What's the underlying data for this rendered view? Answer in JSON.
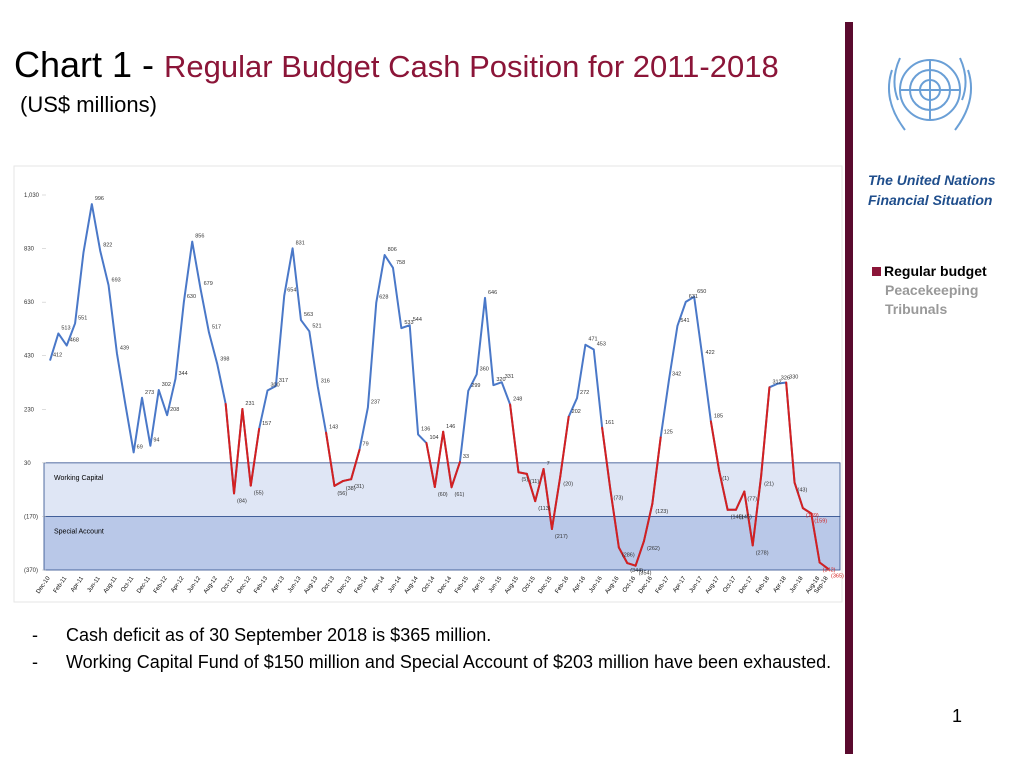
{
  "slide": {
    "title_prefix": "Chart 1 - ",
    "title": "Regular Budget Cash Position for 2011-2018",
    "subtitle": "(US$ millions)",
    "side_title": "The United Nations Financial Situation",
    "nav": [
      "Regular budget",
      "Peacekeeping",
      "Tribunals"
    ],
    "bullets": [
      "Cash deficit as of 30 September 2018 is $365 million.",
      "Working Capital Fund of $150 million and Special Account of $203 million have been exhausted."
    ],
    "page_number": "1"
  },
  "chart_data": {
    "type": "line",
    "color": "#4a78c8",
    "negative_color": "#d42020",
    "ylim": [
      -370,
      1030
    ],
    "yticks": [
      {
        "value": 1030,
        "label": "1,030"
      },
      830,
      630,
      430,
      230,
      30,
      {
        "value": -170,
        "label": "(170)"
      },
      {
        "value": -370,
        "label": "(370)"
      }
    ],
    "bands": [
      {
        "name": "Working Capital",
        "range": [
          30,
          -170
        ],
        "color": "#dfe6f5"
      },
      {
        "name": "Special Account",
        "range": [
          -170,
          -370
        ],
        "color": "#b9c8e8"
      }
    ],
    "categories": [
      "Dec-10",
      null,
      "Feb-11",
      null,
      "Apr-11",
      null,
      "Jun-11",
      null,
      "Aug-11",
      null,
      "Oct-11",
      null,
      "Dec-11",
      null,
      "Feb-12",
      null,
      "Apr-12",
      null,
      "Jun-12",
      null,
      "Aug-12",
      null,
      "Oct-12",
      null,
      "Dec-12",
      null,
      "Feb-13",
      null,
      "Apr-13",
      null,
      "Jun-13",
      null,
      "Aug-13",
      null,
      "Oct-13",
      null,
      "Dec-13",
      null,
      "Feb-14",
      null,
      "Apr-14",
      null,
      "Jun-14",
      null,
      "Aug-14",
      null,
      "Oct-14",
      null,
      "Dec-14",
      null,
      "Feb-15",
      null,
      "Apr-15",
      null,
      "Jun-15",
      null,
      "Aug-15",
      null,
      "Oct-15",
      null,
      "Dec-15",
      null,
      "Feb-16",
      null,
      "Apr-16",
      null,
      "Jun-16",
      null,
      "Aug-16",
      null,
      "Oct-16",
      null,
      "Dec-16",
      null,
      "Feb-17",
      null,
      "Apr-17",
      null,
      "Jun-17",
      null,
      "Aug-17",
      null,
      "Oct-17",
      null,
      "Dec-17",
      null,
      "Feb-18",
      null,
      "Apr-18",
      null,
      "Jun-18",
      null,
      "Aug-18",
      "Sep-18"
    ],
    "values": [
      412,
      513,
      468,
      551,
      815,
      996,
      822,
      693,
      439,
      250,
      69,
      273,
      94,
      302,
      208,
      344,
      630,
      856,
      679,
      517,
      398,
      250,
      -84,
      231,
      -55,
      157,
      300,
      317,
      654,
      831,
      563,
      521,
      316,
      143,
      -56,
      -38,
      -31,
      79,
      237,
      628,
      806,
      758,
      533,
      544,
      136,
      104,
      -60,
      146,
      -61,
      33,
      299,
      360,
      646,
      320,
      331,
      248,
      -5,
      -11,
      -113,
      7,
      -217,
      -20,
      202,
      272,
      471,
      453,
      161,
      -73,
      -286,
      -344,
      -354,
      -262,
      -123,
      125,
      342,
      541,
      631,
      650,
      422,
      185,
      -1,
      -145,
      -145,
      -77,
      -278,
      -21,
      312,
      326,
      330,
      -43,
      -139,
      -159,
      -342,
      -365
    ],
    "value_labels": [
      "412",
      "513",
      "468",
      "551",
      null,
      "996",
      "822",
      "693",
      "439",
      null,
      "69",
      "273",
      "94",
      "302",
      "208",
      "344",
      "630",
      "856",
      "679",
      "517",
      "398",
      null,
      "(84)",
      "231",
      "(55)",
      "157",
      "300",
      "317",
      "654",
      "831",
      "563",
      "521",
      "316",
      "143",
      "(56)",
      "(38)",
      "(31)",
      "79",
      "237",
      "628",
      "806",
      "758",
      "533",
      "544",
      "136",
      "104",
      "(60)",
      "146",
      "(61)",
      "33",
      "299",
      "360",
      "646",
      "320",
      "331",
      "248",
      "(5)",
      "(11)",
      "(113)",
      "7",
      "(217)",
      "(20)",
      "202",
      "272",
      "471",
      "453",
      "161",
      "(73)",
      "(286)",
      "(344)",
      "(354)",
      "(262)",
      "(123)",
      "125",
      "342",
      "541",
      "631",
      "650",
      "422",
      "185",
      "(1)",
      "(145)",
      "(145)",
      "(77)",
      "(278)",
      "(21)",
      "312",
      "326",
      "330",
      "(43)",
      "(139)",
      "(159)",
      "(342)",
      "(365)"
    ]
  }
}
